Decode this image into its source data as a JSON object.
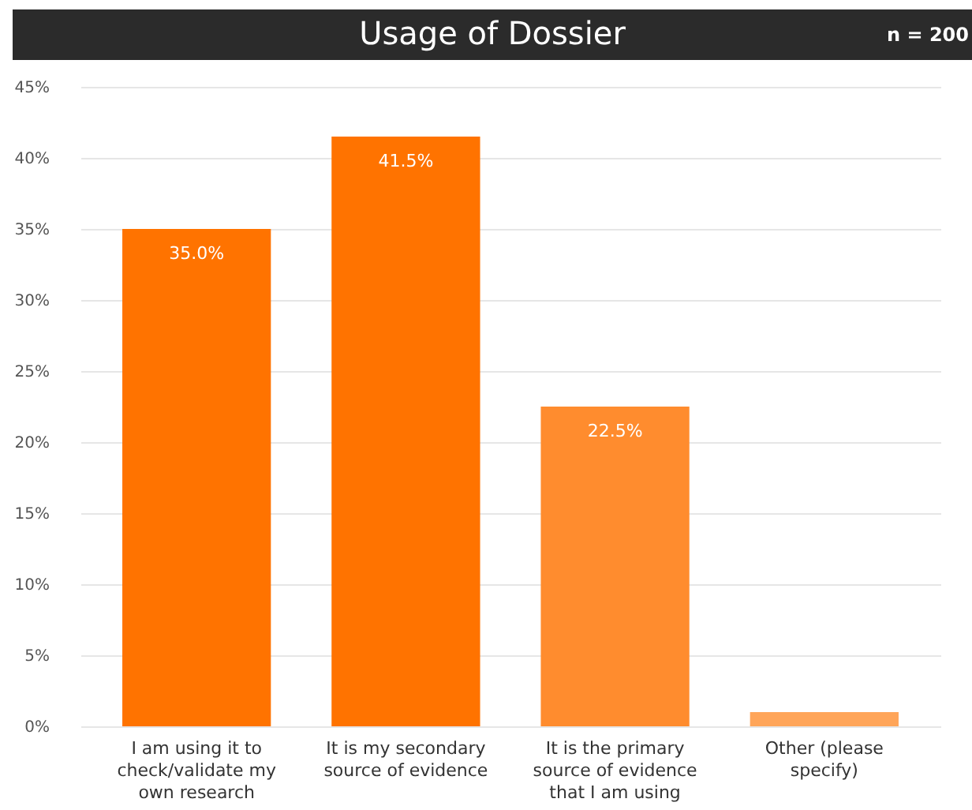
{
  "chart_data": {
    "type": "bar",
    "title": "Usage of Dossier",
    "subtitle": "n = 200",
    "categories": [
      "I am using it to check/validate my own research",
      "It is my secondary source of evidence",
      "It is the primary source of evidence that I am using",
      "Other (please specify)"
    ],
    "values": [
      35.0,
      41.5,
      22.5,
      1.0
    ],
    "colors": [
      "#ff7300",
      "#ff7300",
      "#ff8c2e",
      "#ffa559"
    ],
    "value_labels": [
      "35.0%",
      "41.5%",
      "22.5%",
      null
    ],
    "ylim": [
      0,
      45
    ],
    "yticks": [
      {
        "value": 0,
        "label": "0%"
      },
      {
        "value": 5,
        "label": "5%"
      },
      {
        "value": 10,
        "label": "10%"
      },
      {
        "value": 15,
        "label": "15%"
      },
      {
        "value": 20,
        "label": "20%"
      },
      {
        "value": 25,
        "label": "25%"
      },
      {
        "value": 30,
        "label": "30%"
      },
      {
        "value": 35,
        "label": "35%"
      },
      {
        "value": 40,
        "label": "40%"
      },
      {
        "value": 45,
        "label": "45%"
      }
    ],
    "grid": "y"
  }
}
